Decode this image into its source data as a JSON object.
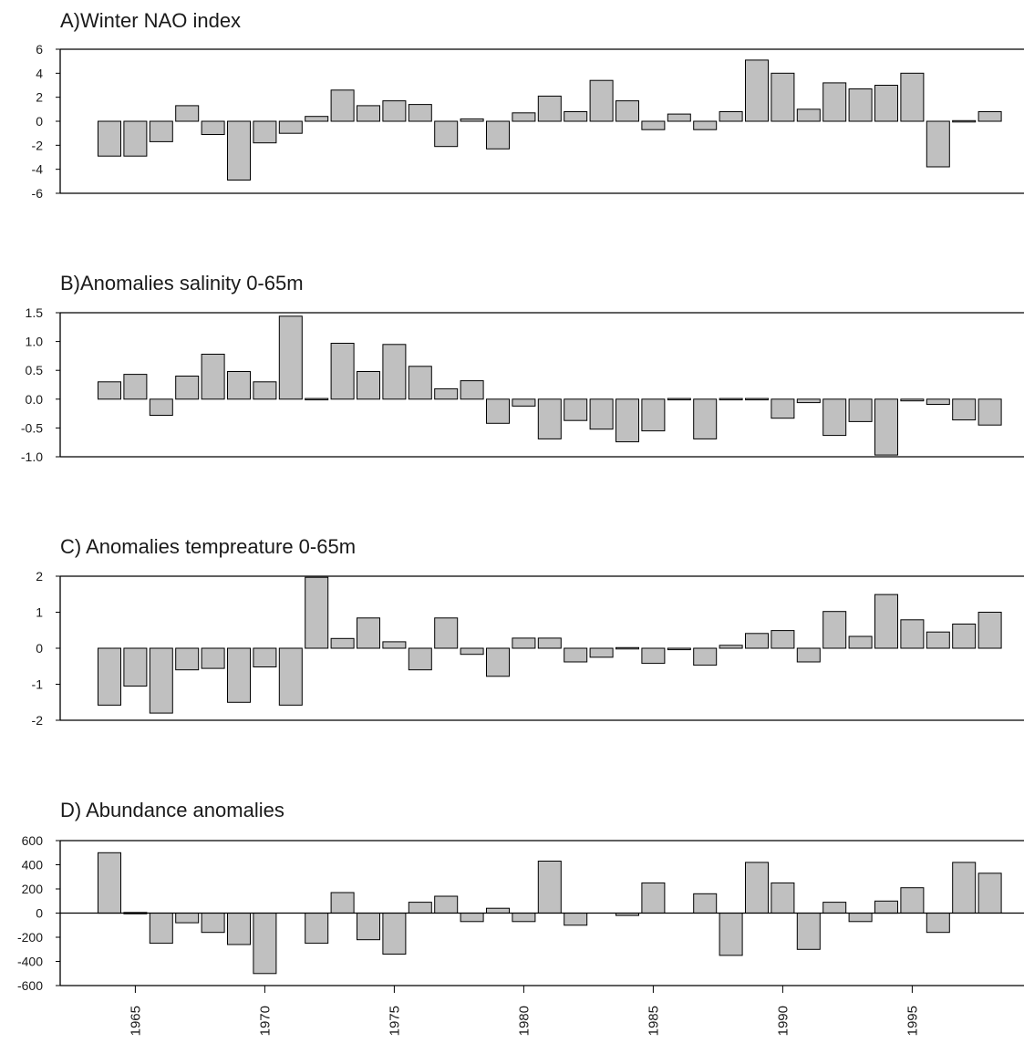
{
  "chart_data": [
    {
      "type": "bar",
      "title": "A)Winter NAO index",
      "ylim": [
        -6,
        6
      ],
      "yticks": [
        6,
        4,
        2,
        0,
        -2,
        -4,
        -6
      ],
      "ytick_labels": [
        "6",
        "4",
        "2",
        "0",
        "-2",
        "-4",
        "-6"
      ],
      "x": [
        1964,
        1965,
        1966,
        1967,
        1968,
        1969,
        1970,
        1971,
        1972,
        1973,
        1974,
        1975,
        1976,
        1977,
        1978,
        1979,
        1980,
        1981,
        1982,
        1983,
        1984,
        1985,
        1986,
        1987,
        1988,
        1989,
        1990,
        1991,
        1992,
        1993,
        1994,
        1995,
        1996,
        1997,
        1998
      ],
      "values": [
        -2.9,
        -2.9,
        -1.7,
        1.3,
        -1.1,
        -4.9,
        -1.8,
        -1.0,
        0.4,
        2.6,
        1.3,
        1.7,
        1.4,
        -2.1,
        0.2,
        -2.3,
        0.7,
        2.1,
        0.8,
        3.4,
        1.7,
        -0.7,
        0.6,
        -0.7,
        0.8,
        5.1,
        4.0,
        1.0,
        3.2,
        2.7,
        3.0,
        4.0,
        -3.8,
        -0.1,
        0.8
      ]
    },
    {
      "type": "bar",
      "title": "B)Anomalies salinity 0-65m",
      "ylim": [
        -1.0,
        1.5
      ],
      "yticks": [
        1.5,
        1.0,
        0.5,
        0.0,
        -0.5,
        -1.0
      ],
      "ytick_labels": [
        "1.5",
        "1.0",
        "0.5",
        "0.0",
        "-0.5",
        "-1.0"
      ],
      "x": [
        1964,
        1965,
        1966,
        1967,
        1968,
        1969,
        1970,
        1971,
        1972,
        1973,
        1974,
        1975,
        1976,
        1977,
        1978,
        1979,
        1980,
        1981,
        1982,
        1983,
        1984,
        1985,
        1986,
        1987,
        1988,
        1989,
        1990,
        1991,
        1992,
        1993,
        1994,
        1995,
        1996,
        1997,
        1998
      ],
      "values": [
        0.3,
        0.43,
        -0.28,
        0.4,
        0.78,
        0.48,
        0.3,
        1.44,
        0.0,
        0.97,
        0.48,
        0.95,
        0.57,
        0.18,
        0.32,
        -0.42,
        -0.12,
        -0.69,
        -0.37,
        -0.52,
        -0.74,
        -0.55,
        0.0,
        -0.69,
        0.02,
        0.0,
        -0.33,
        -0.06,
        -0.63,
        -0.39,
        -0.97,
        -0.03,
        -0.09,
        -0.36,
        -0.45
      ]
    },
    {
      "type": "bar",
      "title": "C) Anomalies tempreature 0-65m",
      "ylim": [
        -2,
        2
      ],
      "yticks": [
        2,
        1,
        0,
        -1,
        -2
      ],
      "ytick_labels": [
        "2",
        "1",
        "0",
        "-1",
        "-2"
      ],
      "x": [
        1964,
        1965,
        1966,
        1967,
        1968,
        1969,
        1970,
        1971,
        1972,
        1973,
        1974,
        1975,
        1976,
        1977,
        1978,
        1979,
        1980,
        1981,
        1982,
        1983,
        1984,
        1985,
        1986,
        1987,
        1988,
        1989,
        1990,
        1991,
        1992,
        1993,
        1994,
        1995,
        1996,
        1997,
        1998
      ],
      "values": [
        -1.58,
        -1.05,
        -1.8,
        -0.6,
        -0.56,
        -1.5,
        -0.52,
        -1.58,
        1.97,
        0.27,
        0.84,
        0.18,
        -0.6,
        0.84,
        -0.17,
        -0.78,
        0.28,
        0.28,
        -0.38,
        -0.25,
        -0.03,
        -0.42,
        -0.04,
        -0.47,
        0.08,
        0.41,
        0.49,
        -0.38,
        1.02,
        0.33,
        1.49,
        0.79,
        0.45,
        0.67,
        1.0
      ]
    },
    {
      "type": "bar",
      "title": "D) Abundance anomalies",
      "ylim": [
        -600,
        600
      ],
      "yticks": [
        600,
        400,
        200,
        0,
        -200,
        -400,
        -600
      ],
      "ytick_labels": [
        "600",
        "400",
        "200",
        "0",
        "-200",
        "-400",
        "-600"
      ],
      "x": [
        1964,
        1965,
        1966,
        1967,
        1968,
        1969,
        1970,
        1971,
        1972,
        1973,
        1974,
        1975,
        1976,
        1977,
        1978,
        1979,
        1980,
        1981,
        1982,
        1983,
        1984,
        1985,
        1986,
        1987,
        1988,
        1989,
        1990,
        1991,
        1992,
        1993,
        1994,
        1995,
        1996,
        1997,
        1998
      ],
      "values": [
        500,
        -10,
        -250,
        -80,
        -160,
        -260,
        -500,
        null,
        -250,
        170,
        -220,
        -340,
        90,
        140,
        -70,
        40,
        -70,
        430,
        -100,
        null,
        -20,
        250,
        null,
        160,
        -350,
        420,
        250,
        -300,
        90,
        -70,
        100,
        210,
        -160,
        420,
        330
      ],
      "xticks": [
        1965,
        1970,
        1975,
        1980,
        1985,
        1990,
        1995
      ],
      "xtick_labels": [
        "1965",
        "1970",
        "1975",
        "1980",
        "1985",
        "1990",
        "1995"
      ]
    }
  ],
  "colors": {
    "bar_fill": "#c0c0c0",
    "bar_stroke": "#000000",
    "axis": "#000000",
    "title": "#1a1a1a"
  }
}
